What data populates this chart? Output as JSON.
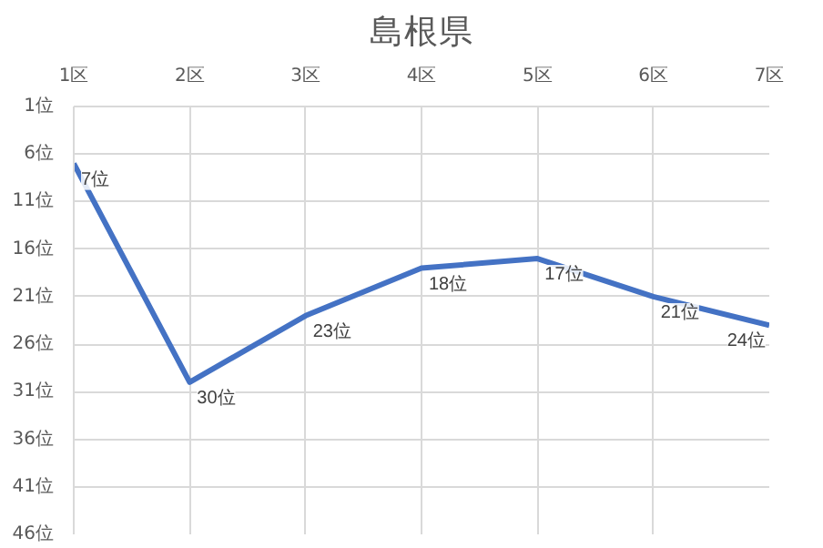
{
  "chart_data": {
    "type": "line",
    "title": "島根県",
    "categories": [
      "1区",
      "2区",
      "3区",
      "4区",
      "5区",
      "6区",
      "7区"
    ],
    "series": [
      {
        "color": "#4472c4",
        "values": [
          7,
          30,
          23,
          18,
          17,
          21,
          24
        ],
        "value_labels": [
          "7位",
          "30位",
          "23位",
          "18位",
          "17位",
          "21位",
          "24位"
        ]
      }
    ],
    "ylim": [
      46,
      1
    ],
    "yticks": [
      {
        "value": 1,
        "label": "1位"
      },
      {
        "value": 6,
        "label": "6位"
      },
      {
        "value": 11,
        "label": "11位"
      },
      {
        "value": 16,
        "label": "16位"
      },
      {
        "value": 21,
        "label": "21位"
      },
      {
        "value": 26,
        "label": "26位"
      },
      {
        "value": 31,
        "label": "31位"
      },
      {
        "value": 36,
        "label": "36位"
      },
      {
        "value": 41,
        "label": "41位"
      },
      {
        "value": 46,
        "label": "46位"
      }
    ],
    "grid": true,
    "marker": "none",
    "line_style": "solid"
  }
}
